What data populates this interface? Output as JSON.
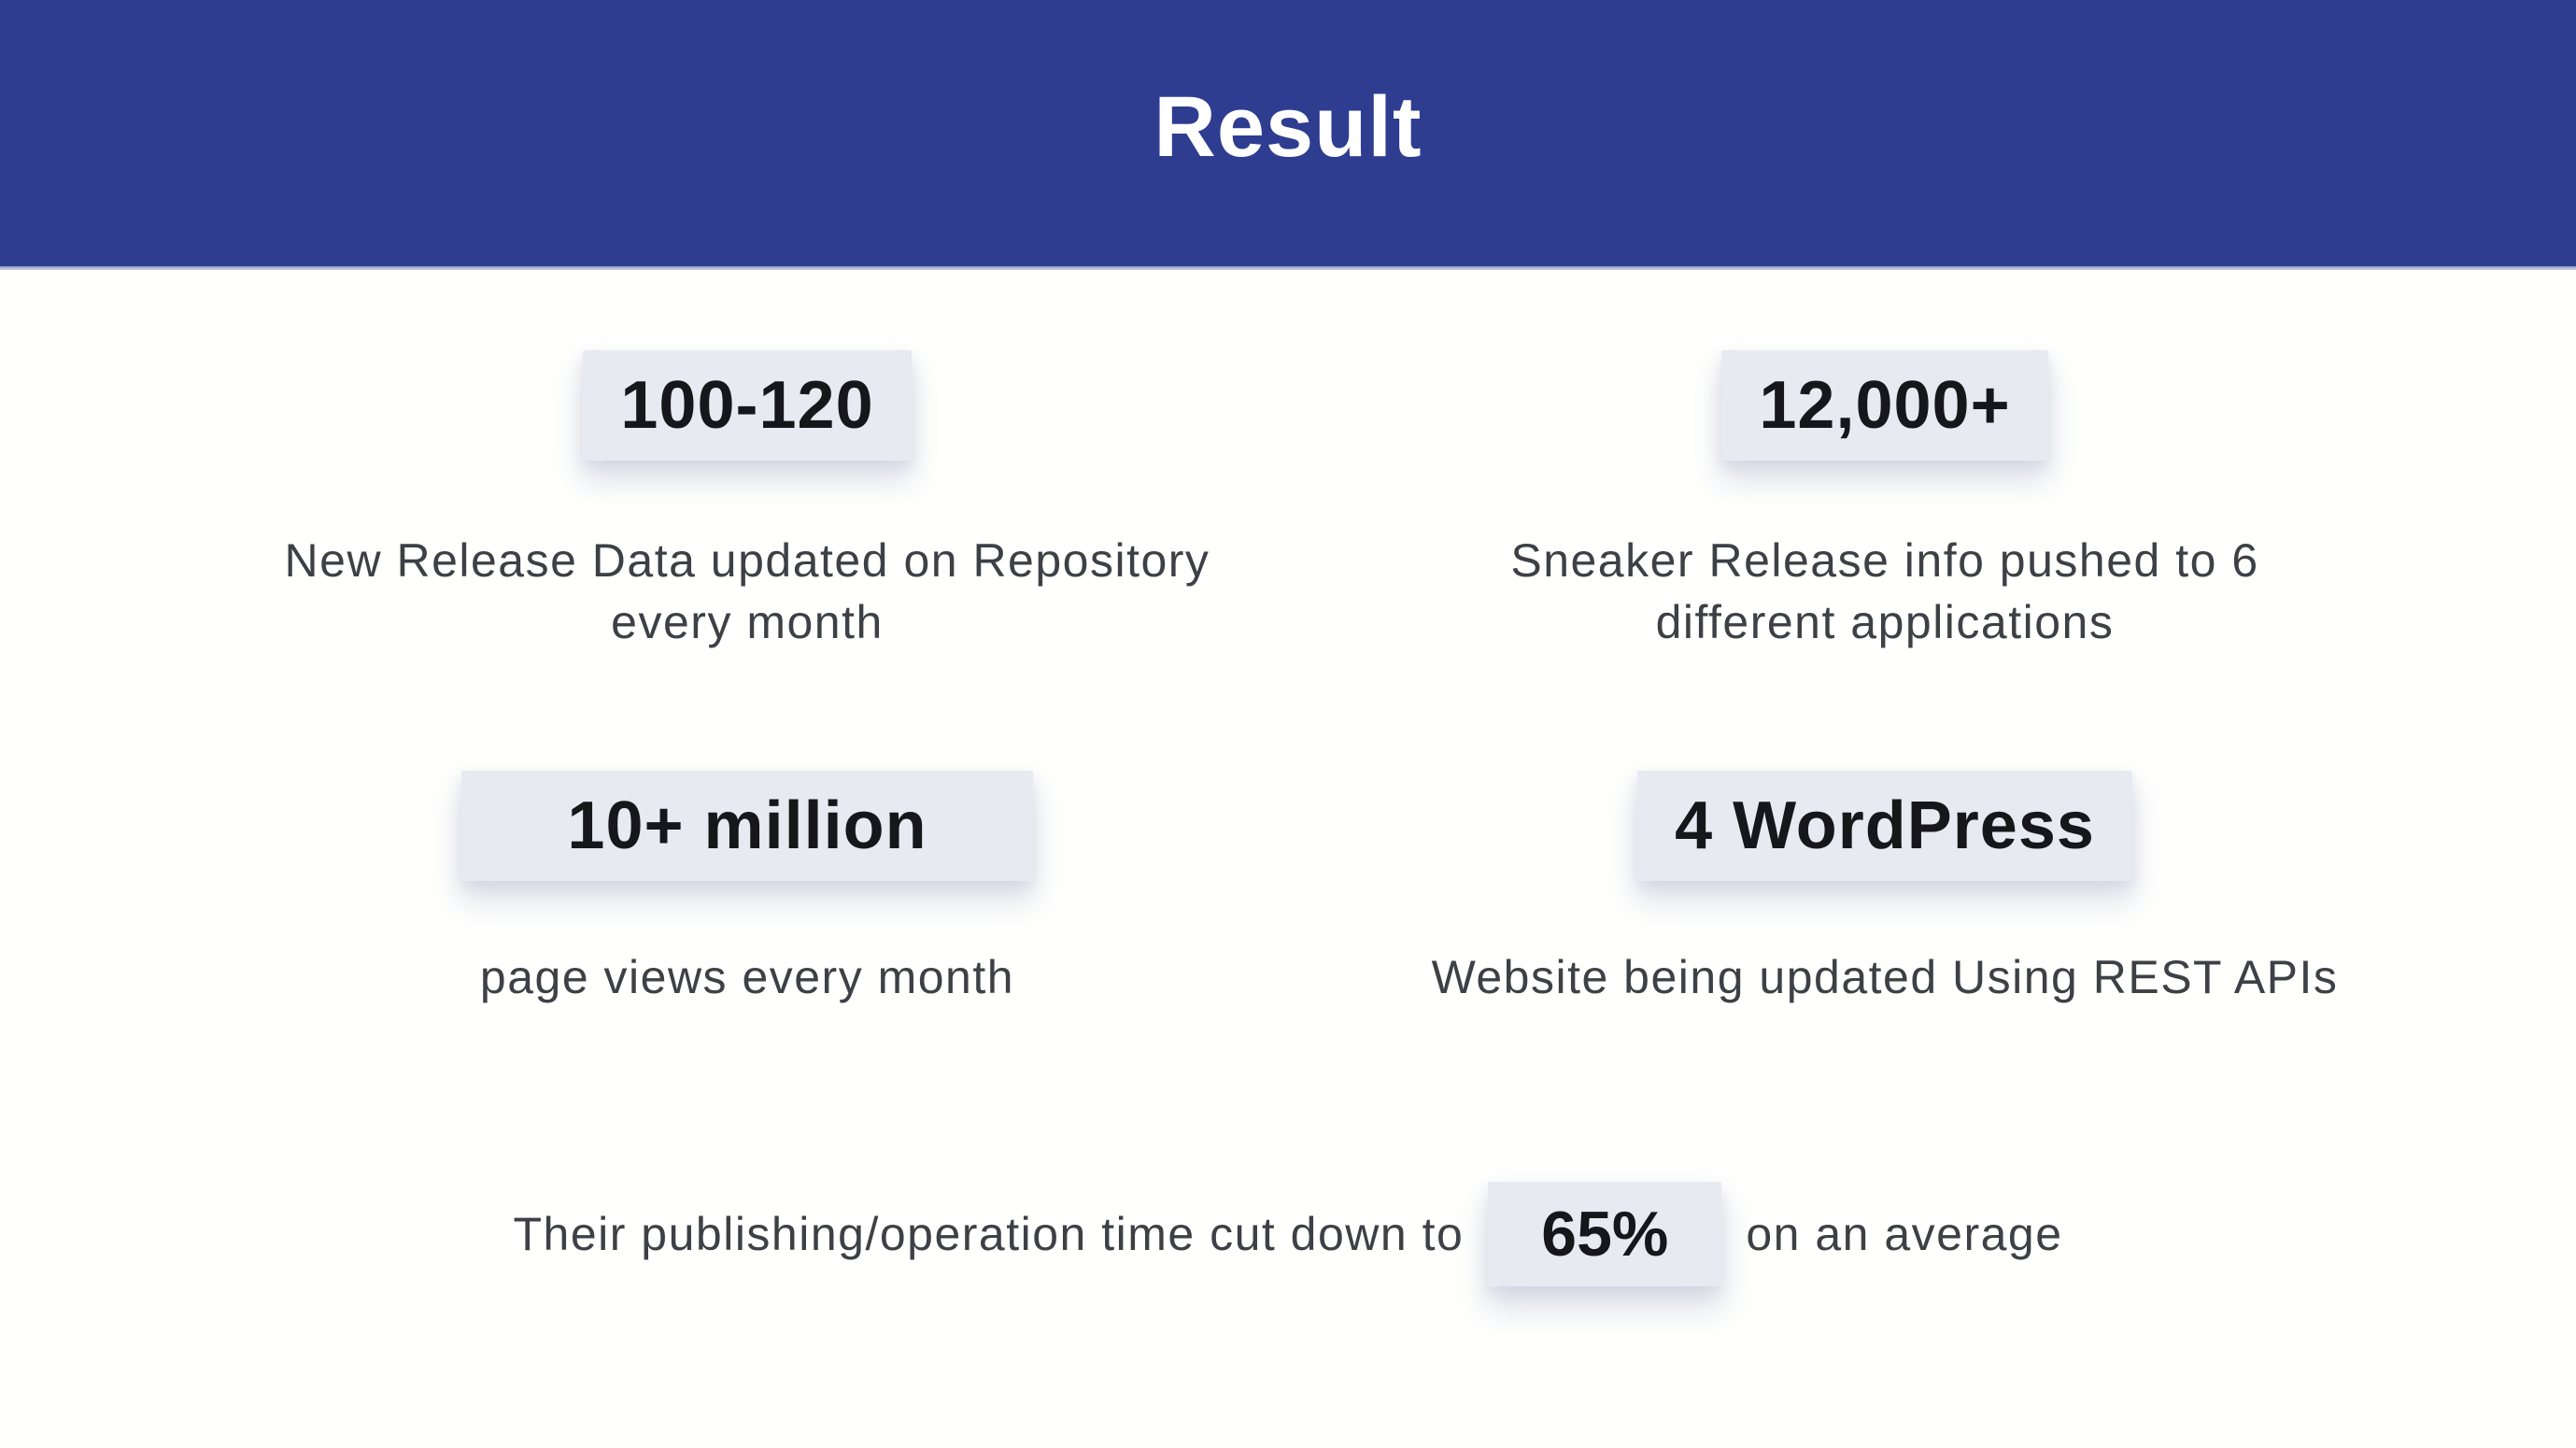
{
  "header": {
    "title": "Result"
  },
  "stats": [
    {
      "value": "100-120",
      "caption_lines": [
        "New Release Data updated on Repository",
        "every month"
      ]
    },
    {
      "value": "12,000+",
      "caption_lines": [
        "Sneaker Release info pushed to 6",
        "different applications"
      ]
    },
    {
      "value": "10+ million",
      "caption_lines": [
        "page views every month"
      ]
    },
    {
      "value": "4 WordPress",
      "caption_lines": [
        "Website being updated Using REST APIs"
      ]
    }
  ],
  "footer": {
    "prefix": "Their publishing/operation time cut down to",
    "highlight": "65%",
    "suffix": "on an average"
  },
  "colors": {
    "header_bg": "#2e3d90",
    "header_border": "#222b6e",
    "header_underline": "#b3bcdc",
    "header_text": "#ffffff",
    "badge_bg": "#e8eaf2",
    "badge_text": "#15171b",
    "caption_text": "#3e4045",
    "page_bg": "#ffffff"
  }
}
